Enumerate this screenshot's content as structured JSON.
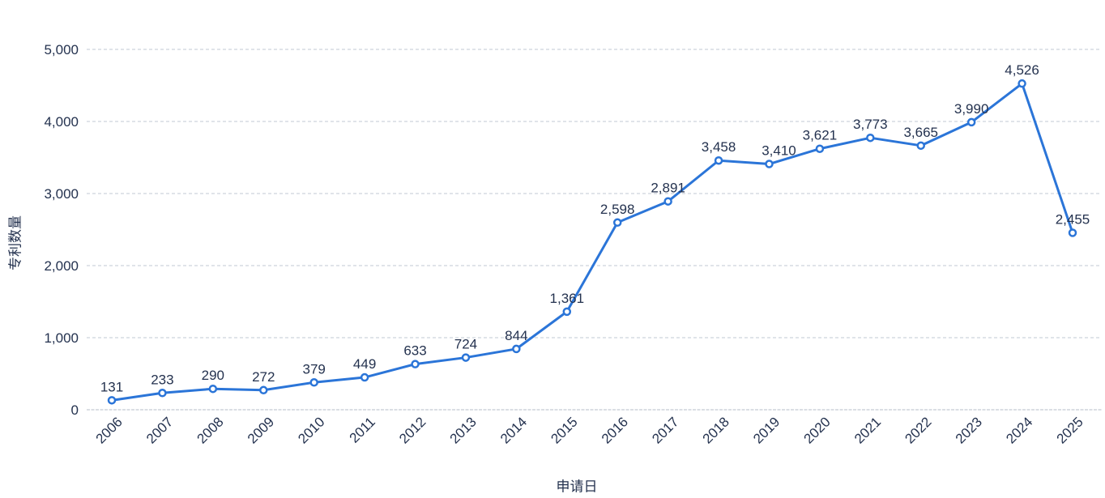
{
  "chart_data": {
    "type": "line",
    "title": "",
    "xlabel": "申请日",
    "ylabel": "专利数量",
    "categories": [
      "2006",
      "2007",
      "2008",
      "2009",
      "2010",
      "2011",
      "2012",
      "2013",
      "2014",
      "2015",
      "2016",
      "2017",
      "2018",
      "2019",
      "2020",
      "2021",
      "2022",
      "2023",
      "2024",
      "2025"
    ],
    "series": [
      {
        "name": "专利数量",
        "values": [
          131,
          233,
          290,
          272,
          379,
          449,
          633,
          724,
          844,
          1361,
          2598,
          2891,
          3458,
          3410,
          3621,
          3773,
          3665,
          3990,
          4526,
          2455
        ]
      }
    ],
    "data_labels_visible": true,
    "ylim": [
      0,
      5000
    ],
    "ytick_interval": 1000,
    "ytick_labels": [
      "0",
      "1,000",
      "2,000",
      "3,000",
      "4,000",
      "5,000"
    ],
    "grid": "horizontal-dashed",
    "legend_position": "none",
    "colors": {
      "line": "#2b75d8",
      "marker_fill": "#ffffff",
      "text": "#24324f",
      "grid": "#ced3dc"
    }
  }
}
